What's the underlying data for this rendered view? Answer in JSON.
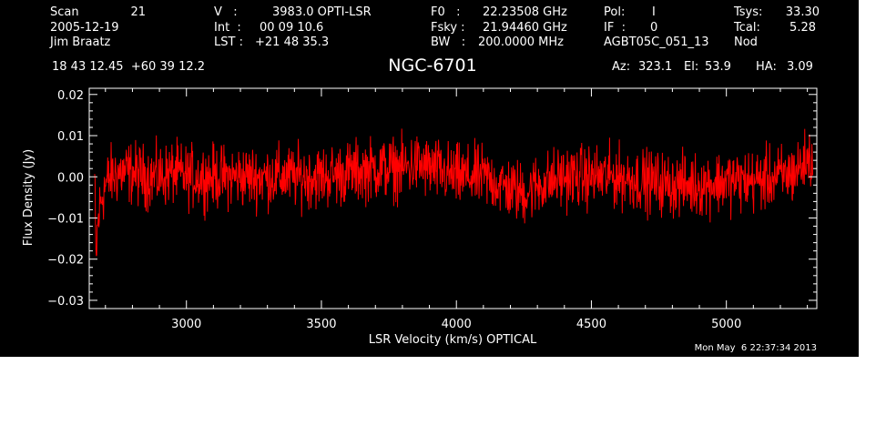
{
  "header": {
    "scan_label": "Scan",
    "scan_value": "21",
    "date": "2005-12-19",
    "observer": "Jim Braatz",
    "velocity_label": "V   :",
    "velocity_value": "3983.0 OPTI-LSR",
    "int_label": "Int  :",
    "int_value": "00 09 10.6",
    "lst_label": "LST :",
    "lst_value": "+21 48 35.3",
    "f0_label": "F0   :",
    "f0_value": "22.23508 GHz",
    "fsky_label": "Fsky :",
    "fsky_value": "21.94460 GHz",
    "bw_label": "BW   :",
    "bw_value": "200.0000 MHz",
    "pol_label": "Pol:",
    "pol_value": "I",
    "if_label": "IF  :",
    "if_value": "0",
    "project": "AGBT05C_051_13",
    "tsys_label": "Tsys:",
    "tsys_value": "33.30",
    "tcal_label": "Tcal:",
    "tcal_value": "5.28",
    "mode": "Nod",
    "coordinates": "18 43 12.45  +60 39 12.2",
    "az_label": "Az:",
    "az_value": "323.1",
    "el_label": "El:",
    "el_value": "53.9",
    "ha_label": "HA:",
    "ha_value": "3.09"
  },
  "timestamp": "Mon May  6 22:37:34 2013",
  "colors": {
    "background": "#000000",
    "axes": "#ffffff",
    "series": "#ff0000"
  },
  "chart_data": {
    "type": "line",
    "title": "NGC-6701",
    "xlabel": "LSR Velocity (km/s) OPTICAL",
    "ylabel": "Flux Density (Jy)",
    "xlim": [
      2640,
      5335
    ],
    "ylim": [
      -0.032,
      0.0215
    ],
    "xticks": [
      3000,
      3500,
      4000,
      4500,
      5000
    ],
    "xtick_labels": [
      "3000",
      "3500",
      "4000",
      "4500",
      "5000"
    ],
    "yticks": [
      -0.03,
      -0.02,
      -0.01,
      0.0,
      0.01,
      0.02
    ],
    "ytick_labels": [
      "−0.03",
      "−0.02",
      "−0.01",
      "0.00",
      "0.01",
      "0.02"
    ],
    "grid": false,
    "legend": "none",
    "series": [
      {
        "x": [
          2660,
          2665,
          2670,
          2680,
          2690,
          2700,
          2720,
          2750,
          2800,
          2850,
          2900,
          2950,
          3000,
          3100,
          3200,
          3300,
          3400,
          3500,
          3600,
          3700,
          3800,
          3850,
          3900,
          3950,
          4000,
          4100,
          4200,
          4250,
          4300,
          4400,
          4500,
          4600,
          4700,
          4800,
          4900,
          5000,
          5100,
          5200,
          5250,
          5300,
          5320
        ],
        "y": [
          0.0,
          -0.022,
          -0.013,
          -0.007,
          -0.004,
          -0.002,
          0.0,
          0.001,
          0.001,
          0.0,
          0.0,
          0.001,
          0.0,
          0.0,
          0.0,
          0.0,
          0.0,
          0.0,
          0.001,
          0.002,
          0.002,
          0.003,
          0.002,
          0.001,
          0.0,
          0.0,
          -0.003,
          -0.004,
          -0.002,
          0.0,
          0.0,
          0.0,
          -0.001,
          -0.002,
          -0.002,
          -0.001,
          -0.001,
          0.0,
          0.001,
          0.004,
          0.005
        ]
      }
    ]
  }
}
